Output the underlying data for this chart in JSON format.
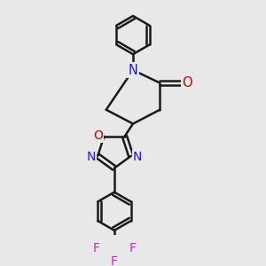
{
  "background_color": "#e8e8e8",
  "bond_color": "#1a1a1a",
  "bond_width": 1.8,
  "N_color": "#1818ff",
  "O_color": "#cc0000",
  "F_color": "#cc22cc",
  "figsize": [
    3.0,
    3.0
  ],
  "dpi": 100,
  "xlim": [
    0,
    10
  ],
  "ylim": [
    0,
    10
  ]
}
